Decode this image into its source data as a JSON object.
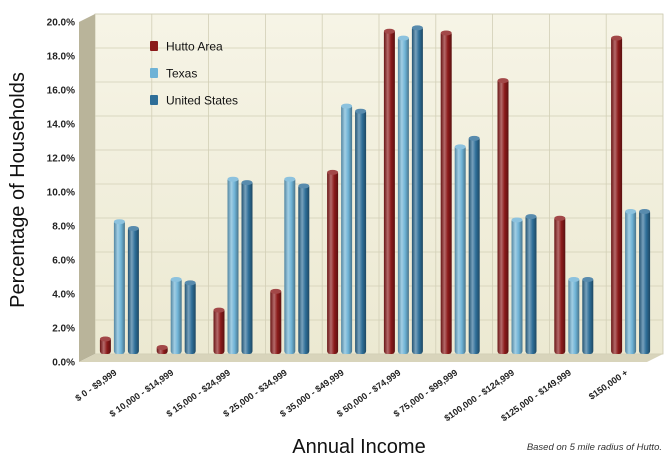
{
  "chart_data": {
    "type": "bar",
    "title": "",
    "xlabel": "Annual Income",
    "ylabel": "Percentage of Households",
    "ylim": [
      0,
      20
    ],
    "y_tick_step": 2,
    "y_tick_format": "percent_1dp",
    "grid": true,
    "legend_placement": "top-left",
    "categories": [
      "$ 0 - $9,999",
      "$ 10,000 - $14,999",
      "$ 15,000 - $24,999",
      "$ 25,000 - $34,999",
      "$ 35,000 - $49,999",
      "$ 50,000 - $74,999",
      "$ 75,000 - $99,999",
      "$100,000 - $124,999",
      "$125,000 - $149,999",
      "$150,000 +"
    ],
    "series": [
      {
        "name": "Hutto Area",
        "color": "#8b1a1a",
        "values": [
          1.0,
          0.5,
          2.7,
          3.8,
          10.8,
          19.1,
          19.0,
          16.2,
          8.1,
          18.7
        ]
      },
      {
        "name": "Texas",
        "color": "#6fb3d6",
        "values": [
          7.9,
          4.5,
          10.4,
          10.4,
          14.7,
          18.7,
          12.3,
          8.0,
          4.5,
          8.5
        ]
      },
      {
        "name": "United States",
        "color": "#2e6e98",
        "values": [
          7.5,
          4.3,
          10.2,
          10.0,
          14.4,
          19.3,
          12.8,
          8.2,
          4.5,
          8.5
        ]
      }
    ],
    "annotation": "Based on 5 mile radius of Hutto."
  }
}
